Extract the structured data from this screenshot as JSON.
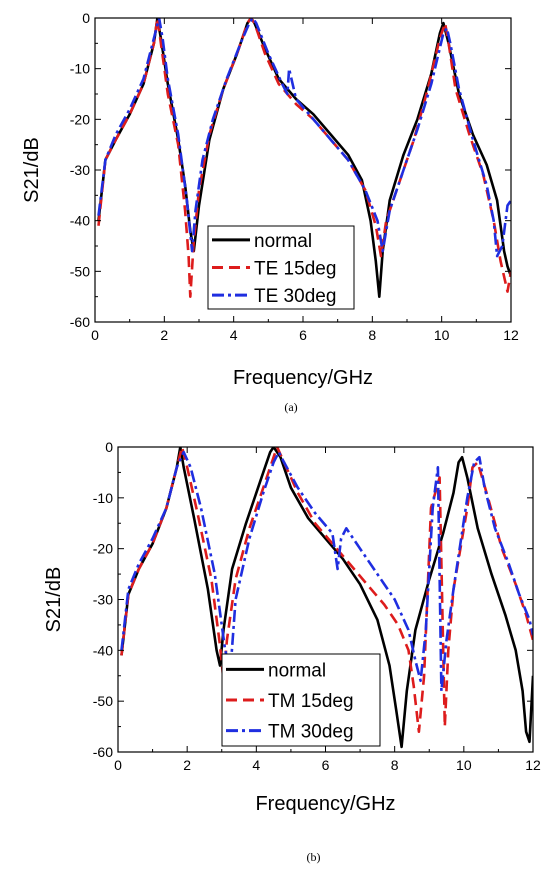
{
  "chart_data": [
    {
      "type": "line",
      "caption": "(a)",
      "xlabel": "Frequency/GHz",
      "ylabel": "S21/dB",
      "xlim": [
        0,
        12
      ],
      "ylim": [
        -60,
        0
      ],
      "xticks": [
        0,
        2,
        4,
        6,
        8,
        10,
        12
      ],
      "yticks": [
        0,
        -10,
        -20,
        -30,
        -40,
        -50,
        -60
      ],
      "grid": false,
      "legend_position": "bottom-center",
      "series": [
        {
          "name": "normal",
          "color": "#000000",
          "dash": "solid",
          "x": [
            0.1,
            0.3,
            0.6,
            1.0,
            1.4,
            1.7,
            1.8,
            1.9,
            2.1,
            2.4,
            2.6,
            2.75,
            2.85,
            3.0,
            3.3,
            3.7,
            4.1,
            4.4,
            4.5,
            4.6,
            4.9,
            5.3,
            5.8,
            6.3,
            6.8,
            7.3,
            7.7,
            7.95,
            8.1,
            8.2,
            8.3,
            8.5,
            8.9,
            9.3,
            9.7,
            9.95,
            10.05,
            10.2,
            10.5,
            10.9,
            11.3,
            11.6,
            11.8,
            11.9,
            12.0
          ],
          "y": [
            -40,
            -28,
            -24,
            -19,
            -13,
            -5,
            0,
            -4,
            -13,
            -24,
            -33,
            -42,
            -46,
            -37,
            -24,
            -14,
            -7,
            -1,
            0,
            -1,
            -6,
            -12,
            -16,
            -19,
            -23,
            -27,
            -32,
            -40,
            -48,
            -55,
            -46,
            -36,
            -27,
            -20,
            -11,
            -3,
            -1,
            -5,
            -15,
            -23,
            -29,
            -36,
            -46,
            -49,
            -51
          ]
        },
        {
          "name": "TE 15deg",
          "color": "#dd1c1c",
          "dash": "dash",
          "x": [
            0.1,
            0.3,
            0.6,
            1.0,
            1.4,
            1.7,
            1.8,
            1.9,
            2.1,
            2.4,
            2.6,
            2.7,
            2.75,
            2.85,
            3.0,
            3.3,
            3.7,
            4.1,
            4.4,
            4.5,
            4.6,
            4.9,
            5.3,
            5.8,
            6.3,
            6.8,
            7.3,
            7.8,
            8.1,
            8.25,
            8.4,
            8.8,
            9.2,
            9.6,
            9.95,
            10.1,
            10.2,
            10.4,
            10.8,
            11.2,
            11.5,
            11.7,
            11.9,
            12.0
          ],
          "y": [
            -41,
            -28,
            -24,
            -19,
            -13,
            -5,
            0,
            -5,
            -15,
            -25,
            -38,
            -47,
            -55,
            -44,
            -34,
            -23,
            -14,
            -7,
            -1,
            0,
            -1,
            -7,
            -13,
            -17,
            -20,
            -24,
            -28,
            -34,
            -41,
            -47,
            -40,
            -32,
            -24,
            -14,
            -4,
            -1,
            -5,
            -14,
            -23,
            -31,
            -40,
            -48,
            -54,
            -50
          ]
        },
        {
          "name": "TE 30deg",
          "color": "#1f2ee0",
          "dash": "dashdot",
          "x": [
            0.1,
            0.3,
            0.6,
            1.0,
            1.4,
            1.7,
            1.85,
            1.95,
            2.1,
            2.4,
            2.65,
            2.8,
            2.85,
            2.9,
            3.1,
            3.4,
            3.8,
            4.2,
            4.45,
            4.55,
            4.65,
            5.0,
            5.4,
            5.55,
            5.6,
            5.8,
            6.3,
            6.8,
            7.3,
            7.8,
            8.15,
            8.3,
            8.5,
            8.9,
            9.3,
            9.7,
            10.05,
            10.15,
            10.25,
            10.5,
            10.9,
            11.3,
            11.5,
            11.6,
            11.75,
            11.9,
            12.0
          ],
          "y": [
            -39,
            -28,
            -23,
            -18,
            -12,
            -4,
            0,
            -4,
            -12,
            -23,
            -36,
            -46,
            -42,
            -38,
            -28,
            -20,
            -12,
            -5,
            -1,
            0,
            -1,
            -7,
            -13,
            -15,
            -10,
            -16,
            -20,
            -24,
            -28,
            -34,
            -40,
            -46,
            -38,
            -30,
            -22,
            -13,
            -3,
            -2,
            -5,
            -14,
            -24,
            -33,
            -40,
            -47,
            -45,
            -37,
            -36
          ]
        }
      ],
      "legend": [
        "normal",
        "TE 15deg",
        "TE 30deg"
      ]
    },
    {
      "type": "line",
      "caption": "(b)",
      "xlabel": "Frequency/GHz",
      "ylabel": "S21/dB",
      "xlim": [
        0,
        12
      ],
      "ylim": [
        -60,
        0
      ],
      "xticks": [
        0,
        2,
        4,
        6,
        8,
        10,
        12
      ],
      "yticks": [
        0,
        -10,
        -20,
        -30,
        -40,
        -50,
        -60
      ],
      "grid": false,
      "legend_position": "bottom-center",
      "series": [
        {
          "name": "normal",
          "color": "#000000",
          "dash": "solid",
          "x": [
            0.1,
            0.3,
            0.6,
            1.0,
            1.4,
            1.7,
            1.8,
            1.9,
            2.2,
            2.6,
            2.85,
            2.95,
            3.05,
            3.3,
            3.7,
            4.1,
            4.4,
            4.5,
            4.7,
            5.0,
            5.5,
            6.0,
            6.5,
            7.0,
            7.5,
            7.85,
            8.05,
            8.2,
            8.35,
            8.6,
            9.0,
            9.4,
            9.7,
            9.85,
            9.95,
            10.1,
            10.4,
            10.8,
            11.2,
            11.5,
            11.7,
            11.8,
            11.9,
            12.0
          ],
          "y": [
            -41,
            -29,
            -24,
            -19,
            -12,
            -4,
            0,
            -4,
            -14,
            -28,
            -40,
            -43,
            -36,
            -24,
            -15,
            -7,
            -1,
            0,
            -2,
            -8,
            -14,
            -18,
            -22,
            -27,
            -34,
            -43,
            -52,
            -59,
            -48,
            -36,
            -26,
            -17,
            -9,
            -3,
            -2,
            -6,
            -16,
            -25,
            -33,
            -40,
            -48,
            -56,
            -58,
            -45
          ]
        },
        {
          "name": "TM 15deg",
          "color": "#dd1c1c",
          "dash": "dash",
          "x": [
            0.1,
            0.3,
            0.6,
            1.0,
            1.4,
            1.7,
            1.85,
            2.0,
            2.3,
            2.7,
            2.95,
            3.05,
            3.15,
            3.4,
            3.8,
            4.2,
            4.5,
            4.6,
            4.8,
            5.2,
            5.7,
            6.2,
            6.7,
            7.2,
            7.7,
            8.1,
            8.4,
            8.55,
            8.7,
            8.85,
            9.05,
            9.3,
            9.45,
            9.55,
            9.7,
            9.9,
            10.1,
            10.25,
            10.4,
            10.7,
            11.1,
            11.5,
            11.8,
            12.0
          ],
          "y": [
            -41,
            -29,
            -24,
            -19,
            -12,
            -4,
            0,
            -4,
            -13,
            -26,
            -39,
            -46,
            -38,
            -26,
            -16,
            -8,
            -2,
            0,
            -3,
            -9,
            -15,
            -19,
            -23,
            -27,
            -31,
            -35,
            -40,
            -47,
            -56,
            -45,
            -12,
            -6,
            -55,
            -40,
            -28,
            -20,
            -12,
            -4,
            -3,
            -10,
            -20,
            -27,
            -33,
            -38
          ]
        },
        {
          "name": "TM 30deg",
          "color": "#1f2ee0",
          "dash": "dashdot",
          "x": [
            0.1,
            0.3,
            0.6,
            1.0,
            1.4,
            1.7,
            1.9,
            2.1,
            2.4,
            2.8,
            3.1,
            3.25,
            3.4,
            3.8,
            4.2,
            4.5,
            4.65,
            4.8,
            5.2,
            5.7,
            6.2,
            6.35,
            6.45,
            6.6,
            7.0,
            7.5,
            8.0,
            8.4,
            8.6,
            8.75,
            8.9,
            9.1,
            9.25,
            9.35,
            9.5,
            9.7,
            9.9,
            10.1,
            10.3,
            10.45,
            10.6,
            10.9,
            11.3,
            11.6,
            11.9,
            12.0
          ],
          "y": [
            -40,
            -28,
            -23,
            -18,
            -12,
            -4,
            -1,
            -4,
            -12,
            -25,
            -40,
            -44,
            -30,
            -18,
            -9,
            -3,
            -1,
            -3,
            -8,
            -13,
            -17,
            -24,
            -18,
            -16,
            -20,
            -25,
            -30,
            -36,
            -42,
            -46,
            -36,
            -12,
            -4,
            -48,
            -38,
            -28,
            -19,
            -10,
            -3,
            -2,
            -8,
            -16,
            -23,
            -29,
            -34,
            -37
          ]
        }
      ],
      "legend": [
        "normal",
        "TM 15deg",
        "TM 30deg"
      ]
    }
  ]
}
